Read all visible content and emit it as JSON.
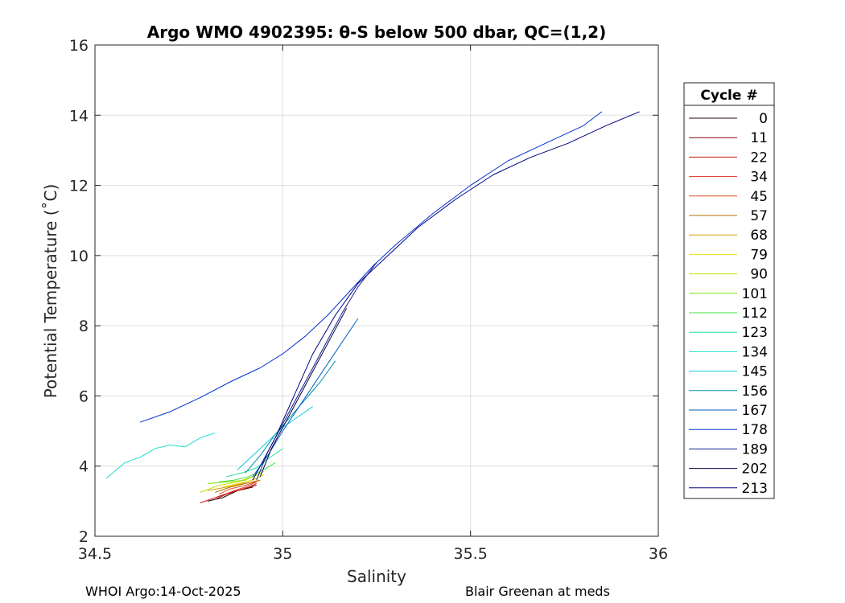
{
  "chart_data": {
    "type": "line",
    "title": "Argo WMO 4902395: θ-S below 500 dbar,  QC=(1,2)",
    "xlabel": "Salinity",
    "ylabel": "Potential Temperature (˚C)",
    "xlim": [
      34.5,
      36
    ],
    "ylim": [
      2,
      16
    ],
    "xticks": [
      34.5,
      35,
      35.5,
      36
    ],
    "xtick_labels": [
      "34.5",
      "35",
      "35.5",
      "36"
    ],
    "yticks": [
      2,
      4,
      6,
      8,
      10,
      12,
      14,
      16
    ],
    "ytick_labels": [
      "2",
      "4",
      "6",
      "8",
      "10",
      "12",
      "14",
      "16"
    ],
    "grid": true,
    "legend": {
      "title": "Cycle #",
      "placement": "outside-right",
      "entries": [
        "0",
        "11",
        "22",
        "34",
        "45",
        "57",
        "68",
        "79",
        "90",
        "101",
        "112",
        "123",
        "134",
        "145",
        "156",
        "167",
        "178",
        "189",
        "202",
        "213"
      ],
      "colors": [
        "#2a0000",
        "#8b0000",
        "#cc1010",
        "#e03020",
        "#e05020",
        "#b07000",
        "#d0a000",
        "#f0e000",
        "#c8e000",
        "#80e000",
        "#40e040",
        "#20e0a0",
        "#20e0d0",
        "#10c8d8",
        "#0090b0",
        "#0060c0",
        "#0030d0",
        "#102090",
        "#000040",
        "#000080"
      ]
    },
    "series": [
      {
        "name": "0",
        "x": [
          34.8,
          34.84,
          34.86,
          34.88,
          34.9,
          34.92
        ],
        "y": [
          3.0,
          3.1,
          3.2,
          3.3,
          3.35,
          3.4
        ]
      },
      {
        "name": "11",
        "x": [
          34.82,
          34.85,
          34.88,
          34.91,
          34.93
        ],
        "y": [
          3.05,
          3.2,
          3.3,
          3.4,
          3.45
        ]
      },
      {
        "name": "22",
        "x": [
          34.78,
          34.82,
          34.86,
          34.9,
          34.93
        ],
        "y": [
          2.95,
          3.1,
          3.25,
          3.35,
          3.5
        ]
      },
      {
        "name": "34",
        "x": [
          34.84,
          34.87,
          34.9,
          34.93
        ],
        "y": [
          3.15,
          3.3,
          3.4,
          3.55
        ]
      },
      {
        "name": "45",
        "x": [
          34.83,
          34.86,
          34.9,
          34.94
        ],
        "y": [
          3.2,
          3.35,
          3.45,
          3.6
        ]
      },
      {
        "name": "57",
        "x": [
          34.82,
          34.86,
          34.9,
          34.94
        ],
        "y": [
          3.25,
          3.4,
          3.5,
          3.6
        ]
      },
      {
        "name": "68",
        "x": [
          34.8,
          34.85,
          34.89,
          34.93
        ],
        "y": [
          3.3,
          3.4,
          3.5,
          3.65
        ]
      },
      {
        "name": "79",
        "x": [
          34.84,
          34.88,
          34.92,
          34.95
        ],
        "y": [
          3.4,
          3.5,
          3.6,
          3.75
        ]
      },
      {
        "name": "90",
        "x": [
          34.78,
          34.83,
          34.88,
          34.92,
          34.95
        ],
        "y": [
          3.25,
          3.45,
          3.55,
          3.7,
          3.85
        ]
      },
      {
        "name": "101",
        "x": [
          34.8,
          34.85,
          34.9,
          34.94
        ],
        "y": [
          3.5,
          3.55,
          3.6,
          3.8
        ]
      },
      {
        "name": "112",
        "x": [
          34.83,
          34.87,
          34.91,
          34.95,
          34.98
        ],
        "y": [
          3.55,
          3.6,
          3.7,
          3.9,
          4.1
        ]
      },
      {
        "name": "123",
        "x": [
          34.85,
          34.89,
          34.93,
          34.96,
          35.0
        ],
        "y": [
          3.7,
          3.8,
          3.95,
          4.2,
          4.5
        ]
      },
      {
        "name": "134",
        "x": [
          34.53,
          34.58,
          34.62,
          34.66,
          34.7,
          34.74,
          34.78,
          34.82
        ],
        "y": [
          3.65,
          4.1,
          4.25,
          4.5,
          4.6,
          4.55,
          4.8,
          4.95
        ]
      },
      {
        "name": "145",
        "x": [
          34.88,
          34.92,
          34.96,
          35.0,
          35.04,
          35.08
        ],
        "y": [
          3.9,
          4.3,
          4.7,
          5.1,
          5.4,
          5.7
        ]
      },
      {
        "name": "156",
        "x": [
          34.9,
          34.94,
          34.98,
          35.02,
          35.06,
          35.1,
          35.14
        ],
        "y": [
          3.8,
          4.3,
          4.9,
          5.4,
          5.9,
          6.4,
          7.0
        ]
      },
      {
        "name": "167",
        "x": [
          34.92,
          34.96,
          35.0,
          35.05,
          35.1,
          35.15,
          35.2
        ],
        "y": [
          3.7,
          4.3,
          5.0,
          5.8,
          6.6,
          7.4,
          8.2
        ]
      },
      {
        "name": "178",
        "x": [
          34.62,
          34.7,
          34.78,
          34.86,
          34.94,
          35.0,
          35.06,
          35.12,
          35.18,
          35.24,
          35.3,
          35.4,
          35.5,
          35.6,
          35.7,
          35.8,
          35.85
        ],
        "y": [
          5.25,
          5.55,
          5.95,
          6.4,
          6.8,
          7.2,
          7.7,
          8.3,
          9.0,
          9.7,
          10.3,
          11.2,
          12.0,
          12.7,
          13.2,
          13.7,
          14.1
        ]
      },
      {
        "name": "189",
        "x": [
          34.93,
          34.96,
          35.0,
          35.04,
          35.08,
          35.12,
          35.16,
          35.2,
          35.25
        ],
        "y": [
          3.6,
          4.4,
          5.2,
          6.0,
          6.8,
          7.6,
          8.4,
          9.1,
          9.8
        ]
      },
      {
        "name": "202",
        "x": [
          34.94,
          34.97,
          35.01,
          35.05,
          35.09,
          35.13,
          35.17
        ],
        "y": [
          3.7,
          4.5,
          5.3,
          6.1,
          6.9,
          7.7,
          8.5
        ]
      },
      {
        "name": "213",
        "x": [
          34.92,
          34.98,
          35.03,
          35.08,
          35.14,
          35.2,
          35.28,
          35.36,
          35.46,
          35.56,
          35.66,
          35.76,
          35.86,
          35.95
        ],
        "y": [
          3.6,
          4.8,
          6.0,
          7.2,
          8.3,
          9.2,
          10.0,
          10.8,
          11.6,
          12.3,
          12.8,
          13.2,
          13.7,
          14.1
        ]
      }
    ],
    "annotations": {
      "footer_left": "WHOI Argo:14-Oct-2025",
      "footer_right": "Blair Greenan at meds"
    }
  }
}
